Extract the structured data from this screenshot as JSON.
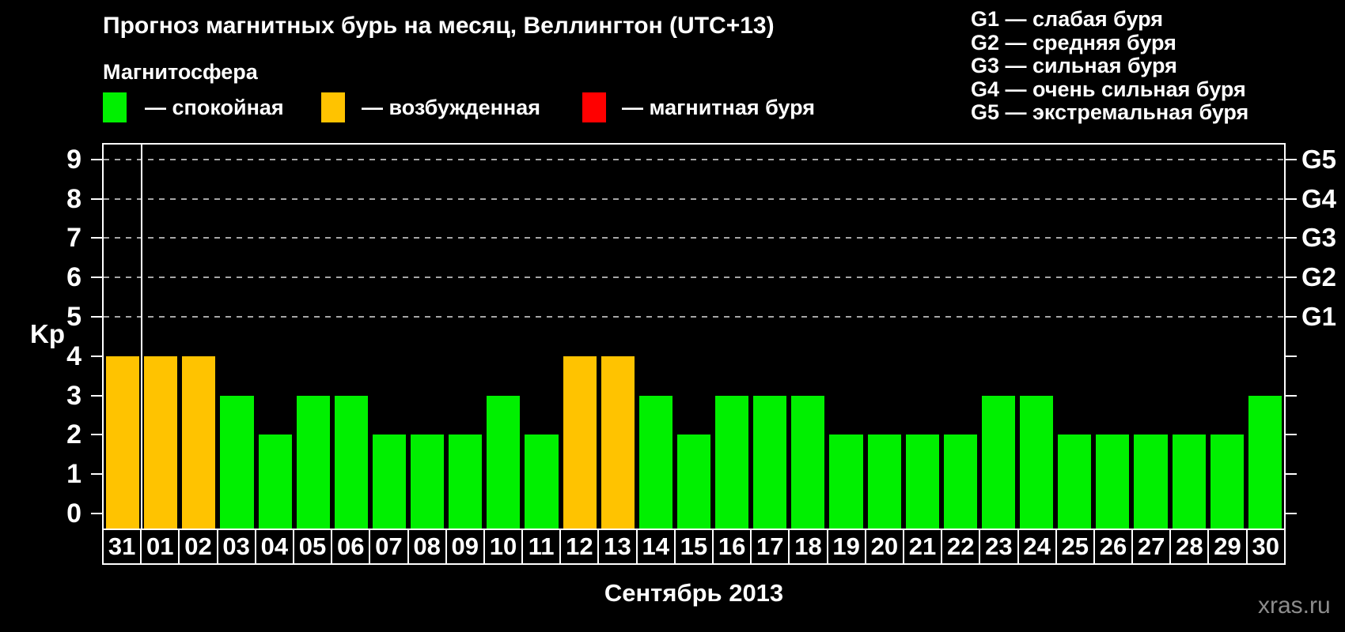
{
  "title": "Прогноз магнитных бурь на месяц, Веллингтон (UTC+13)",
  "legend": {
    "title": "Магнитосфера",
    "items": [
      {
        "label": "— спокойная",
        "state": "quiet",
        "color": "#00F000"
      },
      {
        "label": "— возбужденная",
        "state": "excited",
        "color": "#FFC300"
      },
      {
        "label": "— магнитная буря",
        "state": "storm",
        "color": "#FF0000"
      }
    ]
  },
  "storm_scale": [
    "G1 — слабая буря",
    "G2 — средняя буря",
    "G3 — сильная буря",
    "G4 — очень сильная буря",
    "G5 — экстремальная буря"
  ],
  "watermark": "xras.ru",
  "chart_data": {
    "type": "bar",
    "title": "Прогноз магнитных бурь на месяц, Веллингтон (UTC+13)",
    "ylabel": "Kp",
    "xlabel": "Сентябрь 2013",
    "categories": [
      "31",
      "01",
      "02",
      "03",
      "04",
      "05",
      "06",
      "07",
      "08",
      "09",
      "10",
      "11",
      "12",
      "13",
      "14",
      "15",
      "16",
      "17",
      "18",
      "19",
      "20",
      "21",
      "22",
      "23",
      "24",
      "25",
      "26",
      "27",
      "28",
      "29",
      "30"
    ],
    "values": [
      4,
      4,
      4,
      3,
      2,
      3,
      3,
      2,
      2,
      2,
      3,
      2,
      4,
      4,
      3,
      2,
      3,
      3,
      3,
      2,
      2,
      2,
      2,
      3,
      3,
      2,
      2,
      2,
      2,
      2,
      3
    ],
    "ylim": [
      0,
      9
    ],
    "yticks": [
      0,
      1,
      2,
      3,
      4,
      5,
      6,
      7,
      8,
      9
    ],
    "gridlines": [
      5,
      6,
      7,
      8,
      9
    ],
    "right_axis": [
      {
        "value": 5,
        "label": "G1"
      },
      {
        "value": 6,
        "label": "G2"
      },
      {
        "value": 7,
        "label": "G3"
      },
      {
        "value": 8,
        "label": "G4"
      },
      {
        "value": 9,
        "label": "G5"
      }
    ],
    "month_separator_after_index": 0,
    "color_rules": {
      "quiet_max": 3,
      "excited": 4,
      "storm_min": 5
    },
    "colors": {
      "quiet": "#00F000",
      "excited": "#FFC300",
      "storm": "#FF0000",
      "grid": "#A6A6A6",
      "axis": "#FFFFFF"
    }
  }
}
